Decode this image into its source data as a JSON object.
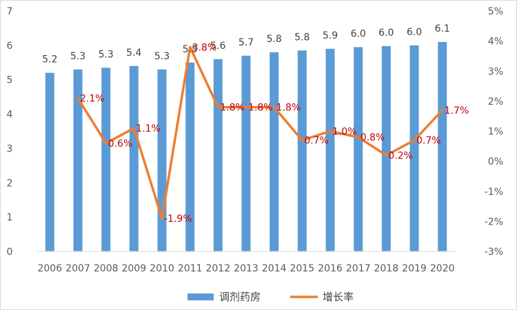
{
  "chart_data": {
    "type": "bar",
    "categories": [
      "2006",
      "2007",
      "2008",
      "2009",
      "2010",
      "2011",
      "2012",
      "2013",
      "2014",
      "2015",
      "2016",
      "2017",
      "2018",
      "2019",
      "2020"
    ],
    "series": [
      {
        "name": "调剂药房",
        "type": "bar",
        "axis": "left",
        "color": "#5b9bd5",
        "values": [
          5.2,
          5.3,
          5.35,
          5.4,
          5.3,
          5.5,
          5.6,
          5.7,
          5.8,
          5.85,
          5.9,
          5.95,
          5.98,
          6.0,
          6.1
        ],
        "labels": [
          "5.2",
          "5.3",
          "5.3",
          "5.4",
          "5.3",
          "5.5",
          "5.6",
          "5.7",
          "5.8",
          "5.8",
          "5.9",
          "6.0",
          "6.0",
          "6.0",
          "6.1"
        ]
      },
      {
        "name": "增长率",
        "type": "line",
        "axis": "right",
        "color": "#ed7d31",
        "values": [
          null,
          2.1,
          0.6,
          1.1,
          -1.9,
          3.8,
          1.8,
          1.8,
          1.8,
          0.7,
          1.0,
          0.8,
          0.2,
          0.7,
          1.7
        ],
        "labels": [
          "",
          "2.1%",
          "0.6%",
          "1.1%",
          "-1.9%",
          "3.8%",
          "1.8%",
          "1.8%",
          "1.8%",
          "0.7%",
          "1.0%",
          "0.8%",
          "0.2%",
          "0.7%",
          "1.7%"
        ],
        "label_color": "#c00000"
      }
    ],
    "y_left": {
      "min": 0,
      "max": 7,
      "ticks": [
        "0",
        "1",
        "2",
        "3",
        "4",
        "5",
        "6",
        "7"
      ]
    },
    "y_right": {
      "min": -3,
      "max": 5,
      "ticks": [
        "-3%",
        "-2%",
        "-1%",
        "0%",
        "1%",
        "2%",
        "3%",
        "4%",
        "5%"
      ]
    },
    "grid": false,
    "legend_position": "bottom"
  }
}
